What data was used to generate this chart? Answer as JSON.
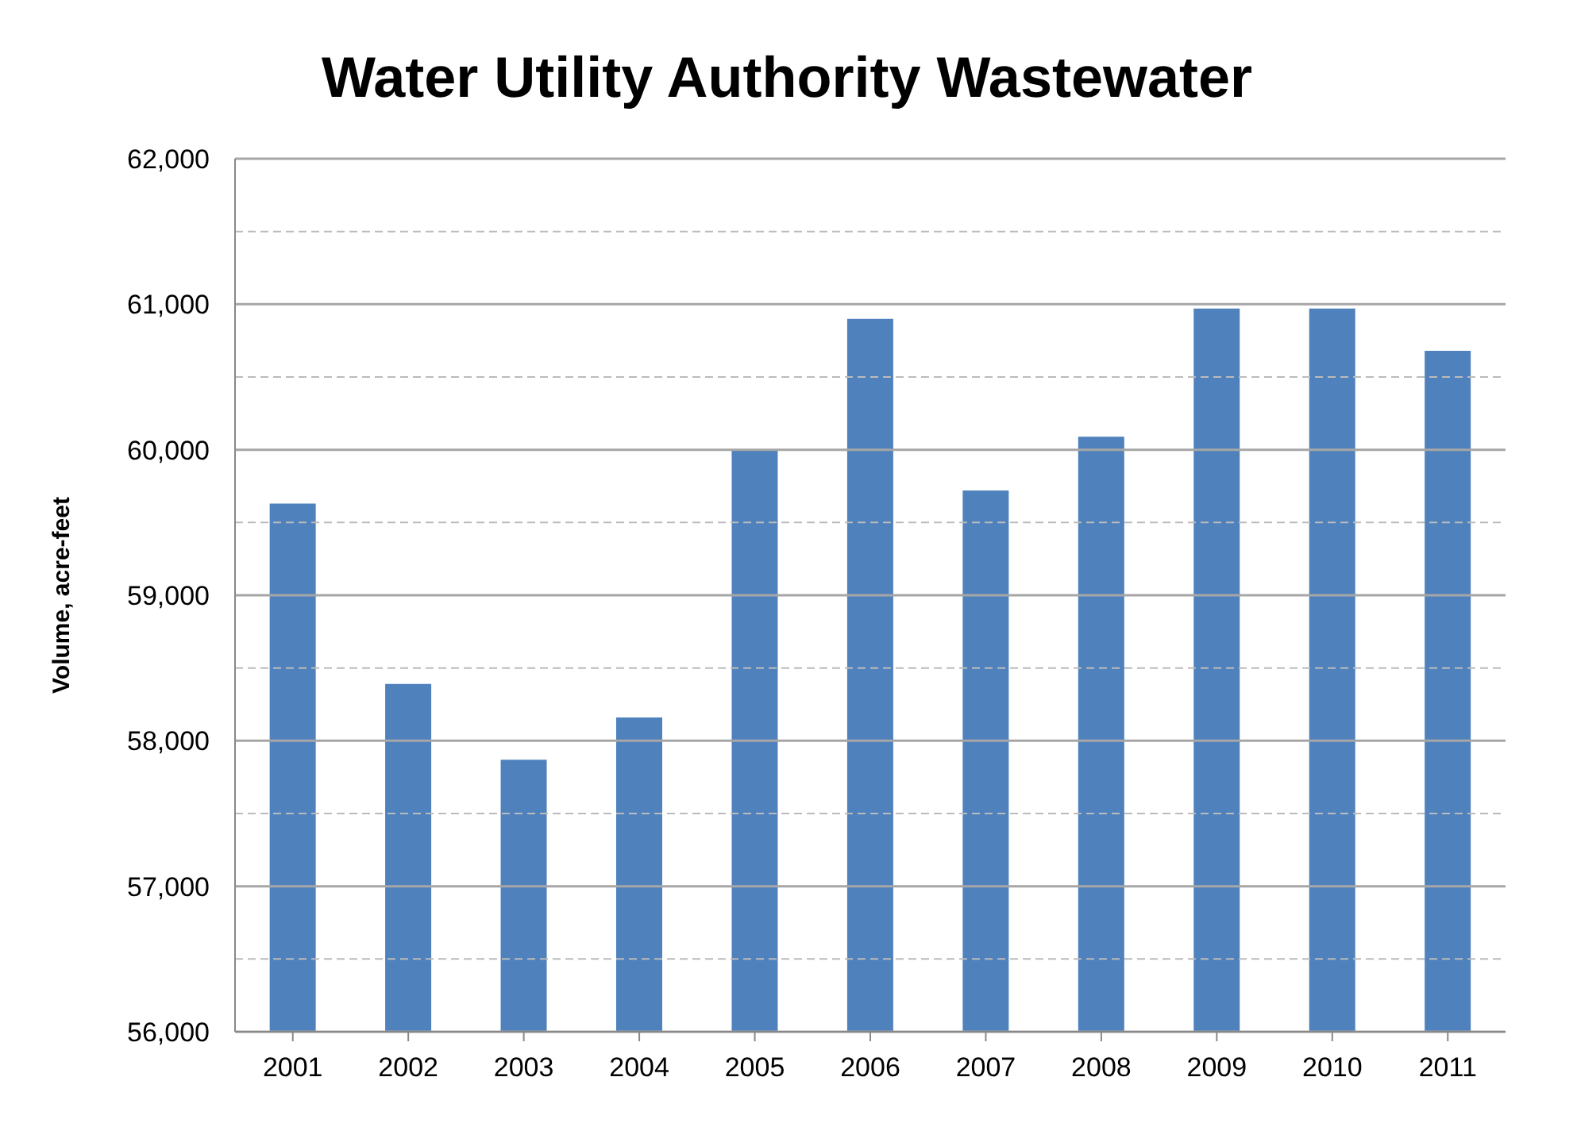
{
  "chart_data": {
    "type": "bar",
    "title": "Water Utility Authority Wastewater",
    "ylabel": "Volume, acre-feet",
    "categories": [
      "2001",
      "2002",
      "2003",
      "2004",
      "2005",
      "2006",
      "2007",
      "2008",
      "2009",
      "2010",
      "2011"
    ],
    "values": [
      59630,
      58390,
      57870,
      58160,
      60000,
      60900,
      59720,
      60090,
      60970,
      60970,
      60680
    ],
    "color": "#4f81bd",
    "ylim": [
      56000,
      62000
    ],
    "yticks": [
      {
        "value": 56000,
        "label": "56,000"
      },
      {
        "value": 56500,
        "label": null
      },
      {
        "value": 57000,
        "label": "57,000"
      },
      {
        "value": 57500,
        "label": null
      },
      {
        "value": 58000,
        "label": "58,000"
      },
      {
        "value": 58500,
        "label": null
      },
      {
        "value": 59000,
        "label": "59,000"
      },
      {
        "value": 59500,
        "label": null
      },
      {
        "value": 60000,
        "label": "60,000"
      },
      {
        "value": 60500,
        "label": null
      },
      {
        "value": 61000,
        "label": "61,000"
      },
      {
        "value": 61500,
        "label": null
      },
      {
        "value": 62000,
        "label": "62,000"
      }
    ],
    "grid": "y"
  }
}
